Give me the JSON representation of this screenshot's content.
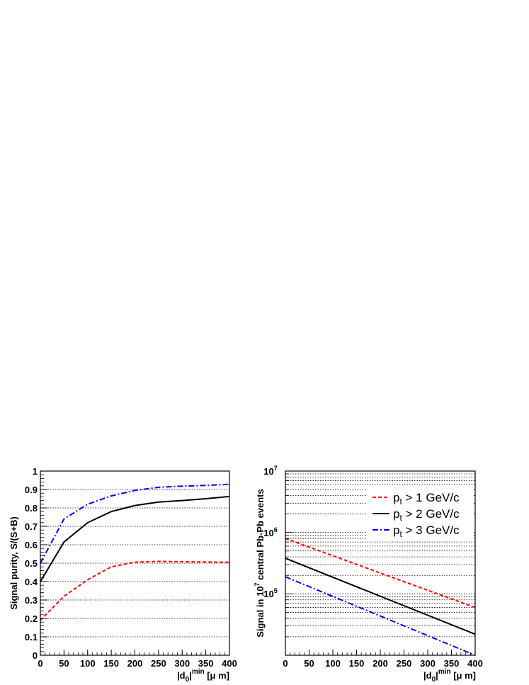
{
  "chart_data": [
    {
      "type": "line",
      "xlabel": "|d0|min [μ m]",
      "ylabel": "Signal purity, S/(S+B)",
      "xlim": [
        0,
        400
      ],
      "ylim": [
        0,
        1
      ],
      "log_y": false,
      "grid": "horizontal dotted",
      "x_ticks": [
        "0",
        "50",
        "100",
        "150",
        "200",
        "250",
        "300",
        "350",
        "400"
      ],
      "y_ticks": [
        "0",
        "0.1",
        "0.2",
        "0.3",
        "0.4",
        "0.5",
        "0.6",
        "0.7",
        "0.8",
        "0.9",
        "1"
      ],
      "series": [
        {
          "color": "#ff0000",
          "dash": "dashed",
          "x": [
            0,
            50,
            100,
            150,
            200,
            250,
            300,
            350,
            400
          ],
          "y": [
            0.19,
            0.32,
            0.41,
            0.48,
            0.505,
            0.51,
            0.508,
            0.506,
            0.505
          ]
        },
        {
          "color": "#000000",
          "dash": "solid",
          "x": [
            0,
            50,
            100,
            150,
            200,
            250,
            300,
            350,
            400
          ],
          "y": [
            0.4,
            0.615,
            0.72,
            0.78,
            0.813,
            0.832,
            0.84,
            0.85,
            0.862
          ]
        },
        {
          "color": "#0000ff",
          "dash": "dashdot",
          "x": [
            0,
            50,
            100,
            150,
            200,
            250,
            300,
            350,
            400
          ],
          "y": [
            0.5,
            0.74,
            0.82,
            0.865,
            0.895,
            0.912,
            0.918,
            0.922,
            0.928
          ]
        }
      ]
    },
    {
      "type": "line",
      "xlabel": "|d0|min [μ m]",
      "ylabel": "Signal in 10^7 central Pb-Pb events",
      "xlim": [
        0,
        400
      ],
      "ylim": [
        10000,
        10000000
      ],
      "log_y": true,
      "grid": "horizontal dotted",
      "x_ticks": [
        "0",
        "50",
        "100",
        "150",
        "200",
        "250",
        "300",
        "350",
        "400"
      ],
      "legend_position": "top-right",
      "series": [
        {
          "name": "p_t > 1 GeV/c",
          "color": "#ff0000",
          "dash": "dashed",
          "x": [
            0,
            400
          ],
          "y": [
            800000,
            60000
          ]
        },
        {
          "name": "p_t > 2 GeV/c",
          "color": "#000000",
          "dash": "solid",
          "x": [
            0,
            400
          ],
          "y": [
            380000,
            22000
          ]
        },
        {
          "name": "p_t > 3 GeV/c",
          "color": "#0000ff",
          "dash": "dashdot",
          "x": [
            0,
            400
          ],
          "y": [
            190000,
            10000
          ]
        }
      ]
    }
  ],
  "labels": {
    "ytitle_left": "Signal purity, S/(S+B)",
    "ytitle_right_a": "Signal in 10",
    "ytitle_right_exp": "7",
    "ytitle_right_b": " central Pb-Pb events",
    "xtitle_pre": "|d",
    "xtitle_sub": "0",
    "xtitle_mid": "|",
    "xtitle_sup": "min",
    "xtitle_post": " [μ m]",
    "log_base": "10",
    "log_exp_5": "5",
    "log_exp_6": "6",
    "log_exp_7": "7",
    "legend_p": "p",
    "legend_sub": "t",
    "legend_1": " > 1 GeV/c",
    "legend_2": " > 2 GeV/c",
    "legend_3": " > 3 GeV/c"
  }
}
